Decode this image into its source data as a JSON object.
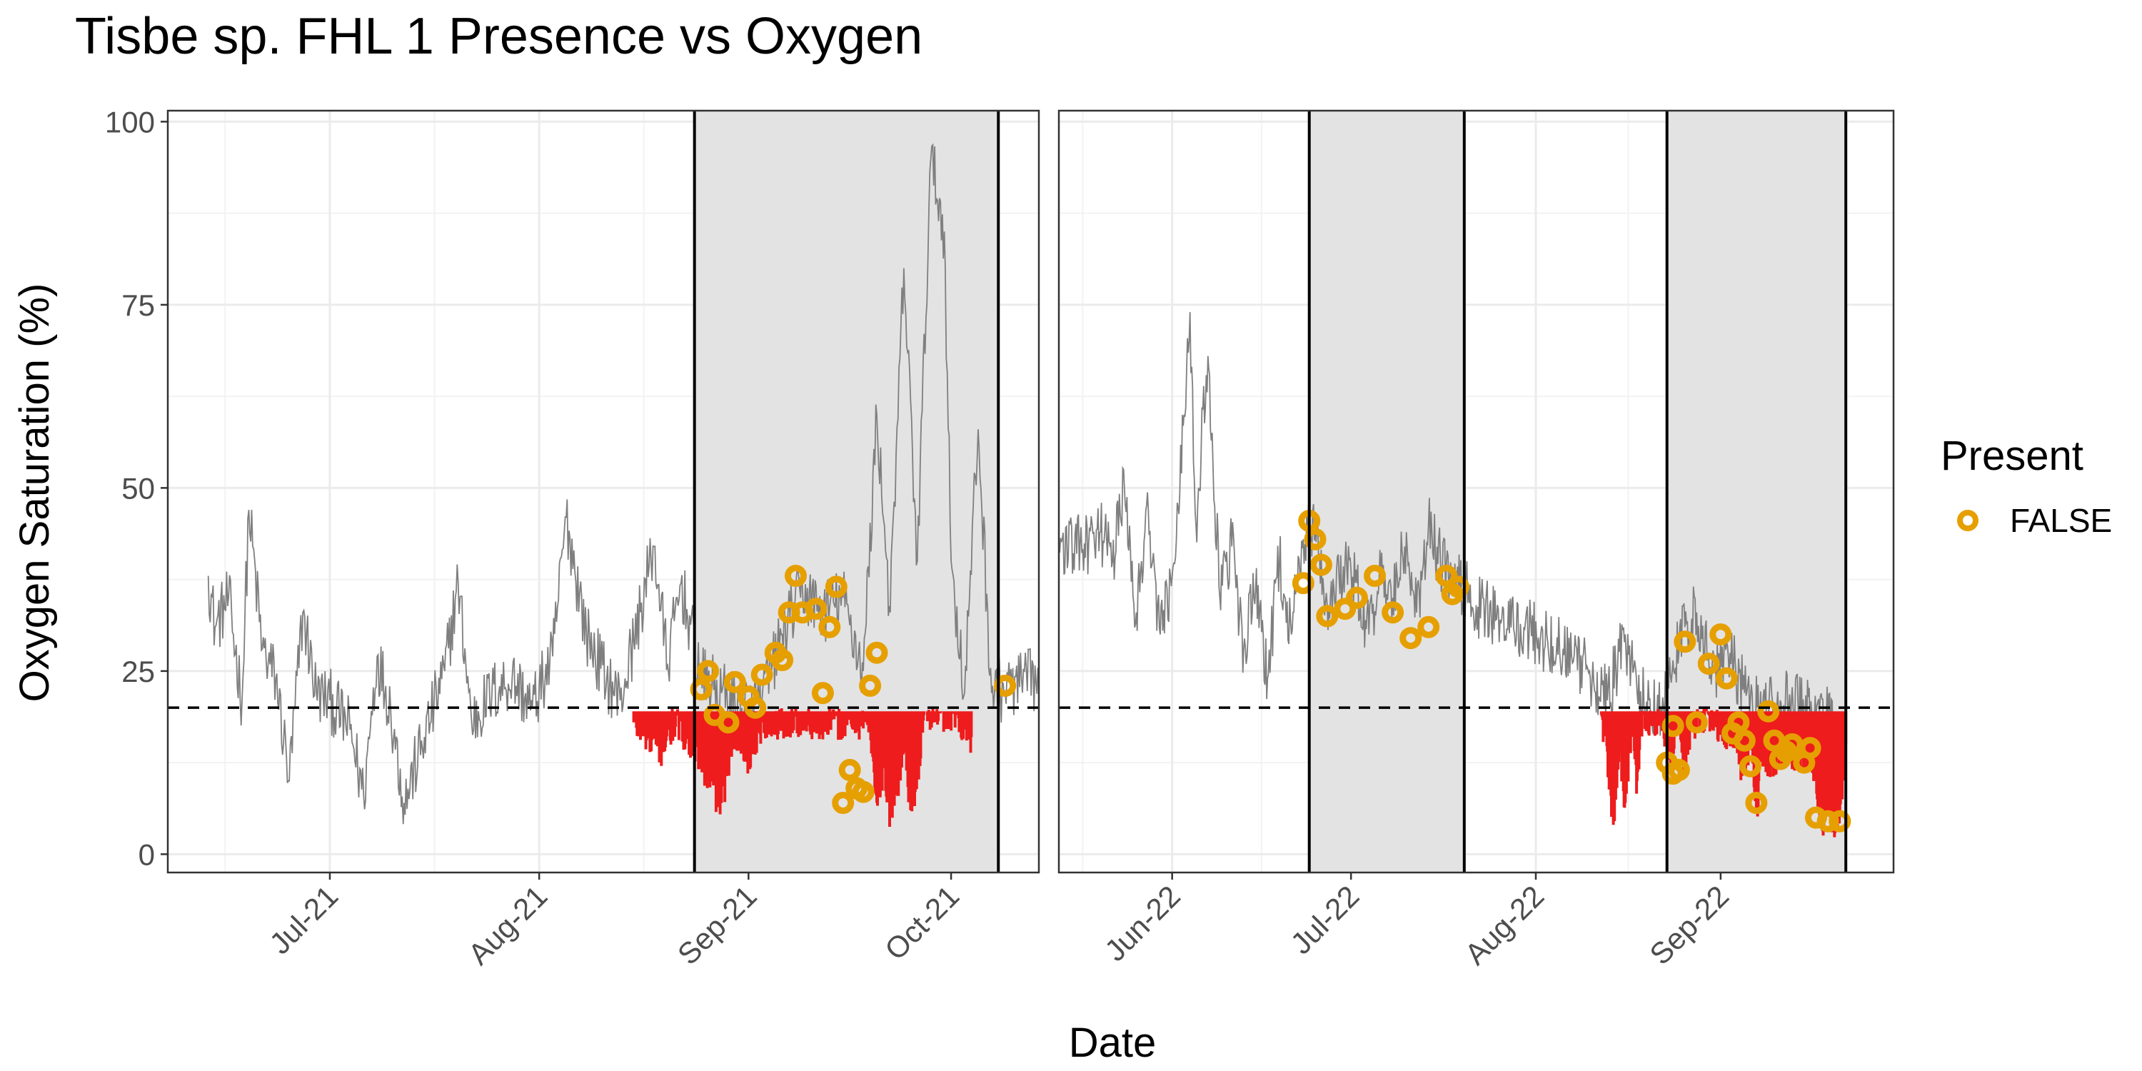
{
  "chart_data": {
    "type": "line",
    "title": "Tisbe sp. FHL 1 Presence vs Oxygen",
    "xlabel": "Date",
    "ylabel": "Oxygen Saturation (%)",
    "ylim": [
      0,
      100
    ],
    "y_ticks": [
      0,
      25,
      50,
      75,
      100
    ],
    "threshold": 20,
    "grid": true,
    "colors": {
      "line": "#7f7f7f",
      "low_oxygen": "#ee1c1c",
      "present_false": "#e69f00",
      "shade": "#e3e3e3",
      "threshold": "#000000"
    },
    "legend": {
      "title": "Present",
      "position": "right",
      "entries": [
        "FALSE"
      ]
    },
    "panels": [
      {
        "xlim": [
          "2021-06-07",
          "2021-10-14"
        ],
        "x_ticks": [
          {
            "date": "2021-07-01",
            "label": "Jul-21"
          },
          {
            "date": "2021-08-01",
            "label": "Aug-21"
          },
          {
            "date": "2021-09-01",
            "label": "Sep-21"
          },
          {
            "date": "2021-10-01",
            "label": "Oct-21"
          }
        ],
        "shaded": [
          [
            "2021-08-24",
            "2021-10-08"
          ]
        ],
        "vlines": [
          "2021-08-24",
          "2021-10-08"
        ],
        "oxygen_keypoints": [
          [
            "2021-06-13",
            38
          ],
          [
            "2021-06-14",
            31
          ],
          [
            "2021-06-16",
            35
          ],
          [
            "2021-06-18",
            21
          ],
          [
            "2021-06-19",
            47
          ],
          [
            "2021-06-21",
            28
          ],
          [
            "2021-06-23",
            24
          ],
          [
            "2021-06-25",
            10
          ],
          [
            "2021-06-27",
            33
          ],
          [
            "2021-06-29",
            22
          ],
          [
            "2021-07-01",
            21
          ],
          [
            "2021-07-04",
            17
          ],
          [
            "2021-07-06",
            8
          ],
          [
            "2021-07-08",
            27
          ],
          [
            "2021-07-10",
            20
          ],
          [
            "2021-07-12",
            7
          ],
          [
            "2021-07-15",
            16
          ],
          [
            "2021-07-18",
            25
          ],
          [
            "2021-07-20",
            37
          ],
          [
            "2021-07-22",
            18
          ],
          [
            "2021-07-25",
            22
          ],
          [
            "2021-07-28",
            24
          ],
          [
            "2021-07-31",
            20
          ],
          [
            "2021-08-03",
            27
          ],
          [
            "2021-08-05",
            46
          ],
          [
            "2021-08-08",
            30
          ],
          [
            "2021-08-11",
            24
          ],
          [
            "2021-08-13",
            21
          ],
          [
            "2021-08-15",
            29
          ],
          [
            "2021-08-18",
            42
          ],
          [
            "2021-08-20",
            26
          ],
          [
            "2021-08-22",
            37
          ],
          [
            "2021-08-25",
            24
          ],
          [
            "2021-08-28",
            22
          ],
          [
            "2021-08-31",
            20
          ],
          [
            "2021-09-03",
            21
          ],
          [
            "2021-09-06",
            30
          ],
          [
            "2021-09-09",
            36
          ],
          [
            "2021-09-12",
            33
          ],
          [
            "2021-09-15",
            35
          ],
          [
            "2021-09-18",
            25
          ],
          [
            "2021-09-20",
            60
          ],
          [
            "2021-09-22",
            33
          ],
          [
            "2021-09-24",
            80
          ],
          [
            "2021-09-26",
            40
          ],
          [
            "2021-09-28",
            95
          ],
          [
            "2021-09-30",
            85
          ],
          [
            "2021-10-01",
            40
          ],
          [
            "2021-10-03",
            22
          ],
          [
            "2021-10-05",
            58
          ],
          [
            "2021-10-07",
            22
          ],
          [
            "2021-10-14",
            24
          ]
        ],
        "low_oxygen_keypoints": [
          [
            "2021-08-15",
            18
          ],
          [
            "2021-08-17",
            16
          ],
          [
            "2021-08-19",
            14
          ],
          [
            "2021-08-21",
            18
          ],
          [
            "2021-08-24",
            15
          ],
          [
            "2021-08-26",
            10
          ],
          [
            "2021-08-28",
            7
          ],
          [
            "2021-08-30",
            17
          ],
          [
            "2021-09-01",
            13
          ],
          [
            "2021-09-03",
            18
          ],
          [
            "2021-09-19",
            18
          ],
          [
            "2021-09-20",
            7
          ],
          [
            "2021-09-21",
            12
          ],
          [
            "2021-09-22",
            5
          ],
          [
            "2021-09-23",
            9
          ],
          [
            "2021-09-24",
            16
          ],
          [
            "2021-09-25",
            6
          ],
          [
            "2021-09-26",
            11
          ],
          [
            "2021-09-27",
            19
          ],
          [
            "2021-10-02",
            19
          ],
          [
            "2021-10-03",
            17
          ],
          [
            "2021-10-04",
            16
          ]
        ],
        "present_false_points": [
          [
            "2021-08-25",
            22.5
          ],
          [
            "2021-08-26",
            25
          ],
          [
            "2021-08-27",
            19
          ],
          [
            "2021-08-29",
            18
          ],
          [
            "2021-08-30",
            23.5
          ],
          [
            "2021-09-01",
            21.5
          ],
          [
            "2021-09-02",
            20
          ],
          [
            "2021-09-03",
            24.5
          ],
          [
            "2021-09-05",
            27.5
          ],
          [
            "2021-09-06",
            26.5
          ],
          [
            "2021-09-07",
            33
          ],
          [
            "2021-09-08",
            38
          ],
          [
            "2021-09-09",
            33
          ],
          [
            "2021-09-11",
            33.5
          ],
          [
            "2021-09-12",
            22
          ],
          [
            "2021-09-13",
            31
          ],
          [
            "2021-09-14",
            36.5
          ],
          [
            "2021-09-15",
            7
          ],
          [
            "2021-09-16",
            11.5
          ],
          [
            "2021-09-17",
            9
          ],
          [
            "2021-09-18",
            8.5
          ],
          [
            "2021-09-19",
            23
          ],
          [
            "2021-09-20",
            27.5
          ],
          [
            "2021-10-09",
            23
          ]
        ]
      },
      {
        "xlim": [
          "2022-05-13",
          "2022-09-30"
        ],
        "x_ticks": [
          {
            "date": "2022-06-01",
            "label": "Jun-22"
          },
          {
            "date": "2022-07-01",
            "label": "Jul-22"
          },
          {
            "date": "2022-08-01",
            "label": "Aug-22"
          },
          {
            "date": "2022-09-01",
            "label": "Sep-22"
          }
        ],
        "shaded": [
          [
            "2022-06-24",
            "2022-07-20"
          ],
          [
            "2022-08-23",
            "2022-09-22"
          ]
        ],
        "vlines": [
          "2022-06-24",
          "2022-07-20",
          "2022-08-23",
          "2022-09-22"
        ],
        "oxygen_keypoints": [
          [
            "2022-05-13",
            42
          ],
          [
            "2022-05-19",
            42
          ],
          [
            "2022-05-20",
            44
          ],
          [
            "2022-05-22",
            40
          ],
          [
            "2022-05-24",
            50
          ],
          [
            "2022-05-26",
            33
          ],
          [
            "2022-05-28",
            47
          ],
          [
            "2022-05-30",
            30
          ],
          [
            "2022-06-01",
            38
          ],
          [
            "2022-06-03",
            60
          ],
          [
            "2022-06-04",
            74
          ],
          [
            "2022-06-05",
            45
          ],
          [
            "2022-06-07",
            68
          ],
          [
            "2022-06-09",
            35
          ],
          [
            "2022-06-11",
            42
          ],
          [
            "2022-06-13",
            28
          ],
          [
            "2022-06-15",
            36
          ],
          [
            "2022-06-17",
            24
          ],
          [
            "2022-06-19",
            40
          ],
          [
            "2022-06-21",
            30
          ],
          [
            "2022-06-23",
            43
          ],
          [
            "2022-06-25",
            45
          ],
          [
            "2022-06-27",
            34
          ],
          [
            "2022-06-30",
            40
          ],
          [
            "2022-07-02",
            37
          ],
          [
            "2022-07-04",
            30
          ],
          [
            "2022-07-06",
            38
          ],
          [
            "2022-07-08",
            35
          ],
          [
            "2022-07-10",
            42
          ],
          [
            "2022-07-12",
            33
          ],
          [
            "2022-07-14",
            45
          ],
          [
            "2022-07-16",
            40
          ],
          [
            "2022-07-18",
            37
          ],
          [
            "2022-07-20",
            36
          ],
          [
            "2022-07-22",
            34
          ],
          [
            "2022-07-26",
            32
          ],
          [
            "2022-07-30",
            31
          ],
          [
            "2022-08-03",
            29
          ],
          [
            "2022-08-07",
            27
          ],
          [
            "2022-08-10",
            25
          ],
          [
            "2022-08-13",
            21
          ],
          [
            "2022-08-16",
            30
          ],
          [
            "2022-08-18",
            22
          ],
          [
            "2022-08-20",
            21
          ],
          [
            "2022-08-22",
            20
          ],
          [
            "2022-08-26",
            31
          ],
          [
            "2022-08-28",
            33
          ],
          [
            "2022-08-31",
            25
          ],
          [
            "2022-09-02",
            29
          ],
          [
            "2022-09-05",
            22
          ],
          [
            "2022-09-08",
            19
          ],
          [
            "2022-09-11",
            21
          ],
          [
            "2022-09-14",
            20
          ],
          [
            "2022-09-17",
            19
          ],
          [
            "2022-09-20",
            18
          ]
        ],
        "low_oxygen_keypoints": [
          [
            "2022-08-12",
            19
          ],
          [
            "2022-08-13",
            14
          ],
          [
            "2022-08-14",
            4
          ],
          [
            "2022-08-15",
            15
          ],
          [
            "2022-08-16",
            7
          ],
          [
            "2022-08-17",
            17
          ],
          [
            "2022-08-18",
            10
          ],
          [
            "2022-08-19",
            19
          ],
          [
            "2022-08-22",
            18
          ],
          [
            "2022-08-24",
            13
          ],
          [
            "2022-08-25",
            19
          ],
          [
            "2022-08-26",
            11
          ],
          [
            "2022-08-27",
            18
          ],
          [
            "2022-08-30",
            19
          ],
          [
            "2022-09-03",
            16
          ],
          [
            "2022-09-05",
            11
          ],
          [
            "2022-09-06",
            17
          ],
          [
            "2022-09-07",
            6
          ],
          [
            "2022-09-08",
            14
          ],
          [
            "2022-09-10",
            12
          ],
          [
            "2022-09-12",
            15
          ],
          [
            "2022-09-14",
            13
          ],
          [
            "2022-09-16",
            14
          ],
          [
            "2022-09-17",
            11
          ],
          [
            "2022-09-18",
            4
          ],
          [
            "2022-09-19",
            8
          ],
          [
            "2022-09-20",
            3
          ],
          [
            "2022-09-21",
            6
          ],
          [
            "2022-09-22",
            15
          ]
        ],
        "present_false_points": [
          [
            "2022-06-23",
            37
          ],
          [
            "2022-06-24",
            45.5
          ],
          [
            "2022-06-25",
            43
          ],
          [
            "2022-06-26",
            39.5
          ],
          [
            "2022-06-27",
            32.5
          ],
          [
            "2022-06-30",
            33.5
          ],
          [
            "2022-07-02",
            35
          ],
          [
            "2022-07-05",
            38
          ],
          [
            "2022-07-08",
            33
          ],
          [
            "2022-07-11",
            29.5
          ],
          [
            "2022-07-14",
            31
          ],
          [
            "2022-07-17",
            38
          ],
          [
            "2022-07-18",
            35.5
          ],
          [
            "2022-07-19",
            36.5
          ],
          [
            "2022-08-23",
            12.5
          ],
          [
            "2022-08-24",
            11
          ],
          [
            "2022-08-24",
            17.5
          ],
          [
            "2022-08-25",
            11.5
          ],
          [
            "2022-08-26",
            29
          ],
          [
            "2022-08-28",
            18
          ],
          [
            "2022-08-30",
            26
          ],
          [
            "2022-09-01",
            30
          ],
          [
            "2022-09-02",
            24
          ],
          [
            "2022-09-03",
            16.5
          ],
          [
            "2022-09-04",
            18
          ],
          [
            "2022-09-05",
            15.5
          ],
          [
            "2022-09-06",
            12
          ],
          [
            "2022-09-07",
            7
          ],
          [
            "2022-09-09",
            19.5
          ],
          [
            "2022-09-10",
            15.5
          ],
          [
            "2022-09-11",
            13
          ],
          [
            "2022-09-12",
            14
          ],
          [
            "2022-09-13",
            15
          ],
          [
            "2022-09-15",
            12.5
          ],
          [
            "2022-09-16",
            14.5
          ],
          [
            "2022-09-17",
            5
          ],
          [
            "2022-09-19",
            4.5
          ],
          [
            "2022-09-21",
            4.5
          ]
        ]
      }
    ]
  }
}
